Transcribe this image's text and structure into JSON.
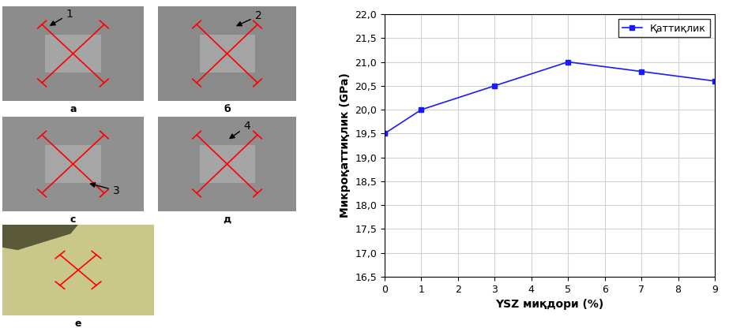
{
  "panels": [
    {
      "label": "а",
      "callout": "1"
    },
    {
      "label": "б",
      "callout": "2"
    },
    {
      "label": "с",
      "callout": "3"
    },
    {
      "label": "д",
      "callout": "4"
    },
    {
      "label": "е"
    }
  ],
  "chart_data": {
    "type": "line",
    "x": [
      0,
      1,
      3,
      5,
      7,
      9
    ],
    "series": [
      {
        "name": "Қаттиқлик",
        "color": "#1a1aff",
        "marker": "square",
        "values": [
          19.5,
          20.0,
          20.5,
          21.0,
          20.8,
          20.6
        ]
      }
    ],
    "x_label": "YSZ миқдори (%)",
    "y_label": "Микроқаттиқлик (GPa)",
    "xlim": [
      0,
      9
    ],
    "xticks": [
      0,
      1,
      2,
      3,
      4,
      5,
      6,
      7,
      8,
      9
    ],
    "ylim": [
      16.5,
      22.0
    ],
    "yticks": [
      {
        "value": 16.5,
        "label": "16,5"
      },
      {
        "value": 17.0,
        "label": "17,0"
      },
      {
        "value": 17.5,
        "label": "17,5"
      },
      {
        "value": 18.0,
        "label": "18,0"
      },
      {
        "value": 18.5,
        "label": "18,5"
      },
      {
        "value": 19.0,
        "label": "19,0"
      },
      {
        "value": 19.5,
        "label": "19,5"
      },
      {
        "value": 20.0,
        "label": "20,0"
      },
      {
        "value": 20.5,
        "label": "20,5"
      },
      {
        "value": 21.0,
        "label": "21,0"
      },
      {
        "value": 21.5,
        "label": "21,5"
      },
      {
        "value": 22.0,
        "label": "22,0"
      }
    ],
    "grid": true,
    "legend": "upper right"
  }
}
